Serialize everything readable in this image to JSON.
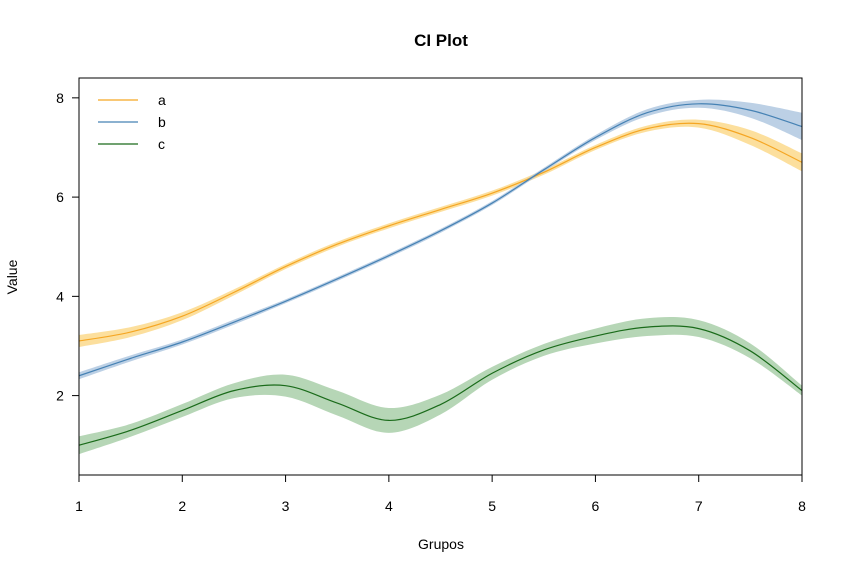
{
  "chart_data": {
    "type": "line",
    "title": "CI Plot",
    "xlabel": "Grupos",
    "ylabel": "Value",
    "xlim": [
      1,
      8
    ],
    "ylim": [
      0.4,
      8.4
    ],
    "x_ticks": [
      1,
      2,
      3,
      4,
      5,
      6,
      7,
      8
    ],
    "y_ticks": [
      2,
      4,
      6,
      8
    ],
    "legend_position": "top-left",
    "grid": false,
    "series": [
      {
        "name": "a",
        "color": "#F5A623",
        "band_color": "#FBD98C",
        "x": [
          1,
          1.5,
          2,
          2.5,
          3,
          3.5,
          4,
          4.5,
          5,
          5.5,
          6,
          6.5,
          7,
          7.5,
          8
        ],
        "y": [
          3.1,
          3.28,
          3.6,
          4.08,
          4.6,
          5.05,
          5.42,
          5.75,
          6.08,
          6.5,
          7.0,
          7.38,
          7.48,
          7.2,
          6.7
        ],
        "lower": [
          2.98,
          3.18,
          3.52,
          4.02,
          4.55,
          5.0,
          5.37,
          5.7,
          6.03,
          6.45,
          6.95,
          7.32,
          7.4,
          7.05,
          6.52
        ],
        "upper": [
          3.22,
          3.38,
          3.68,
          4.14,
          4.65,
          5.1,
          5.47,
          5.8,
          6.13,
          6.55,
          7.05,
          7.44,
          7.56,
          7.35,
          6.88
        ]
      },
      {
        "name": "b",
        "color": "#4682B4",
        "band_color": "#B0C8E0",
        "x": [
          1,
          1.5,
          2,
          2.5,
          3,
          3.5,
          4,
          4.5,
          5,
          5.5,
          6,
          6.5,
          7,
          7.5,
          8
        ],
        "y": [
          2.4,
          2.75,
          3.08,
          3.48,
          3.9,
          4.35,
          4.82,
          5.32,
          5.88,
          6.55,
          7.2,
          7.7,
          7.88,
          7.75,
          7.42
        ],
        "lower": [
          2.33,
          2.69,
          3.03,
          3.43,
          3.86,
          4.31,
          4.78,
          5.28,
          5.84,
          6.51,
          7.15,
          7.63,
          7.8,
          7.6,
          7.15
        ],
        "upper": [
          2.47,
          2.81,
          3.13,
          3.53,
          3.94,
          4.39,
          4.86,
          5.36,
          5.92,
          6.59,
          7.25,
          7.77,
          7.96,
          7.9,
          7.7
        ]
      },
      {
        "name": "c",
        "color": "#1A6B1A",
        "band_color": "#A9CFA9",
        "x": [
          1,
          1.5,
          2,
          2.5,
          3,
          3.5,
          4,
          4.5,
          5,
          5.5,
          6,
          6.5,
          7,
          7.5,
          8
        ],
        "y": [
          1.0,
          1.3,
          1.7,
          2.1,
          2.2,
          1.85,
          1.5,
          1.82,
          2.45,
          2.92,
          3.2,
          3.38,
          3.35,
          2.9,
          2.1
        ],
        "lower": [
          0.82,
          1.17,
          1.57,
          1.95,
          1.98,
          1.6,
          1.25,
          1.62,
          2.32,
          2.8,
          3.05,
          3.2,
          3.18,
          2.75,
          2.0
        ],
        "upper": [
          1.18,
          1.43,
          1.83,
          2.25,
          2.42,
          2.1,
          1.75,
          2.02,
          2.58,
          3.04,
          3.35,
          3.56,
          3.52,
          3.05,
          2.2
        ]
      }
    ]
  }
}
